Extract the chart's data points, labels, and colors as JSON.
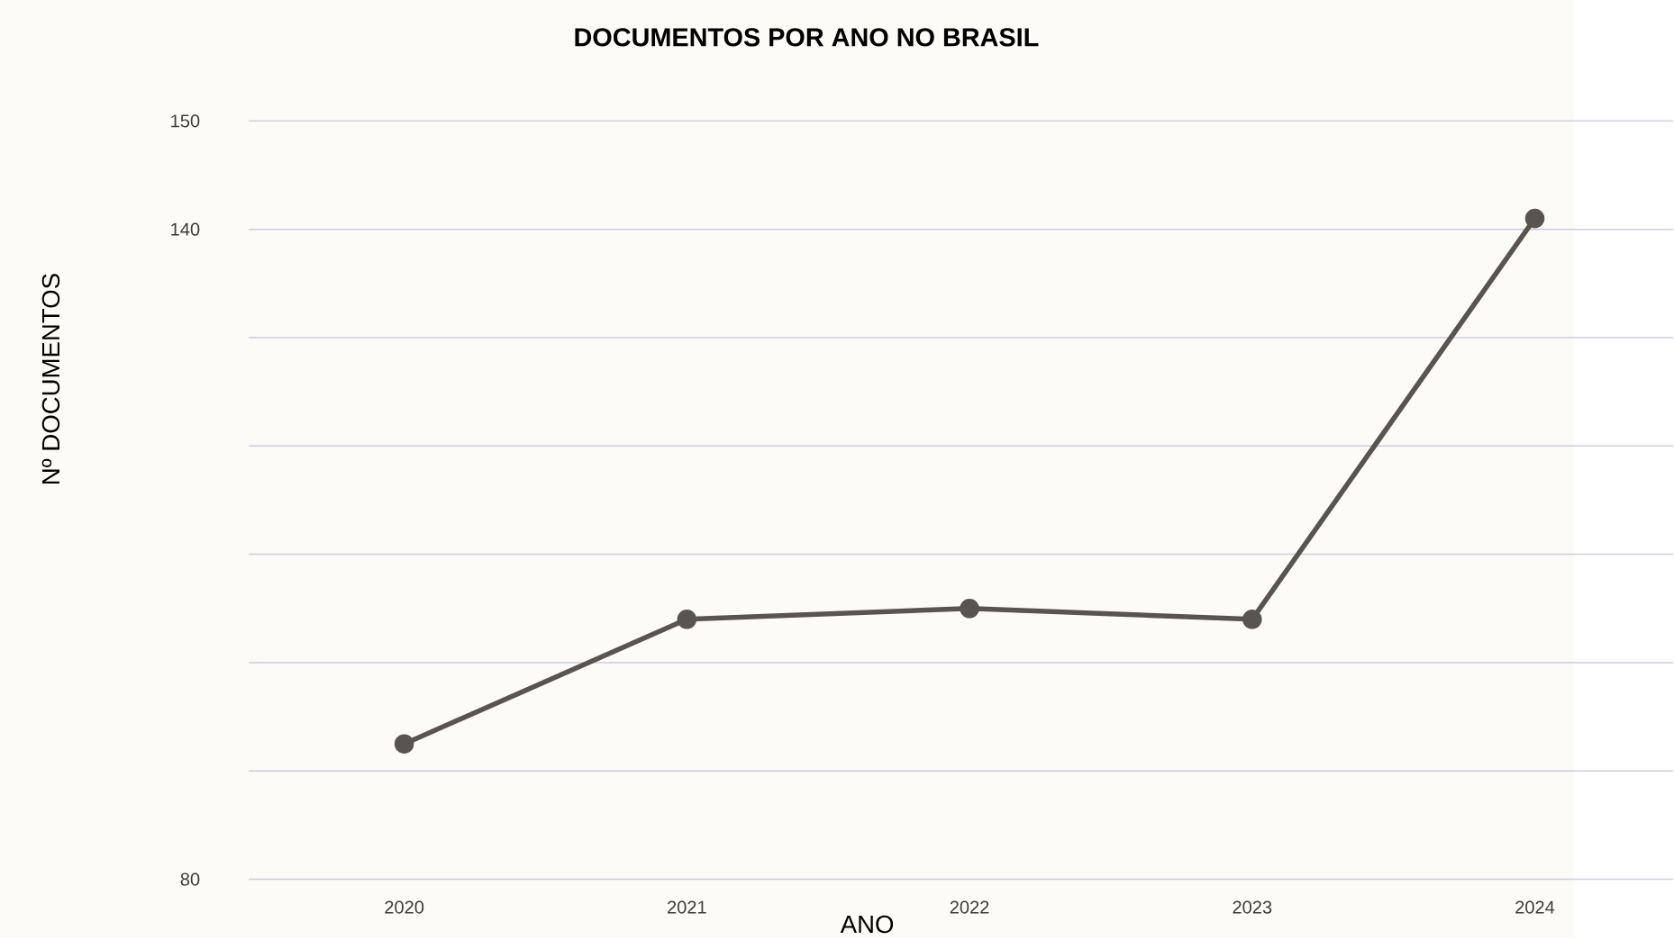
{
  "chart_data": {
    "type": "line",
    "title": "DOCUMENTOS POR ANO NO BRASIL",
    "xlabel": "ANO",
    "ylabel": "Nº DOCUMENTOS",
    "categories": [
      "2020",
      "2021",
      "2022",
      "2023",
      "2024"
    ],
    "series": [
      {
        "color": "#595450",
        "values": [
          92.5,
          104,
          105,
          104,
          141
        ]
      }
    ],
    "ylim": [
      80,
      150
    ],
    "yticks": [
      80,
      {
        "value": 90,
        "label": null
      },
      {
        "value": 100,
        "label": null
      },
      {
        "value": 110,
        "label": null
      },
      {
        "value": 120,
        "label": null
      },
      {
        "value": 130,
        "label": null
      },
      140,
      150
    ],
    "grid": "y",
    "marker": "circle",
    "line_style": "solid"
  }
}
